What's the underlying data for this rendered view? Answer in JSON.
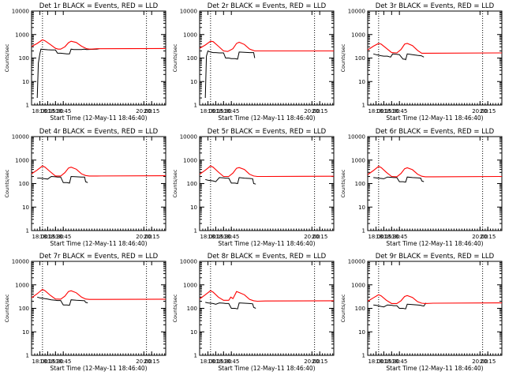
{
  "colors": {
    "events": "#000000",
    "lld": "#ff0000",
    "frame": "#000000",
    "background": "#ffffff"
  },
  "chart_data": [
    {
      "type": "line",
      "title": "Det 1r BLACK = Events, RED = LLD",
      "xlabel": "Start Time (12-May-11 18:46:40)",
      "ylabel": "Counts/sec",
      "ylog": true,
      "ylim": [
        1,
        10000
      ],
      "xlim": [
        17.84,
        20.42
      ],
      "xticks": [
        "18:00",
        "18:15",
        "18:30",
        "18:45",
        "20:00",
        "20:15"
      ],
      "yticks": [
        "1",
        "10",
        "100",
        "1000",
        "10000"
      ],
      "markers": [
        "18:05",
        "20:05"
      ],
      "series": [
        {
          "name": "Events",
          "x": [
            17.95,
            17.97,
            18.0,
            18.02,
            18.1,
            18.15,
            18.22,
            18.3,
            18.34,
            18.4,
            18.45,
            18.52,
            18.57,
            18.6,
            18.65,
            18.8,
            18.85,
            18.9,
            19.1,
            19.14
          ],
          "y": [
            2,
            60,
            150,
            240,
            230,
            225,
            220,
            220,
            160,
            160,
            155,
            150,
            150,
            240,
            230,
            230,
            240,
            230,
            240,
            250
          ]
        },
        {
          "name": "LLD",
          "x": [
            17.84,
            17.95,
            18.05,
            18.1,
            18.2,
            18.3,
            18.35,
            18.4,
            18.48,
            18.55,
            18.6,
            18.7,
            18.8,
            18.9,
            18.95,
            19.0,
            19.1,
            20.42
          ],
          "y": [
            310,
            420,
            600,
            540,
            380,
            260,
            240,
            240,
            300,
            450,
            520,
            460,
            320,
            250,
            240,
            240,
            250,
            255
          ]
        }
      ]
    },
    {
      "type": "line",
      "title": "Det 2r BLACK = Events, RED = LLD",
      "xlabel": "Start Time (12-May-11 18:46:40)",
      "ylabel": "Counts/sec",
      "ylog": true,
      "ylim": [
        1,
        10000
      ],
      "xlim": [
        17.84,
        20.42
      ],
      "xticks": [
        "18:00",
        "18:15",
        "18:30",
        "18:45",
        "20:00",
        "20:15"
      ],
      "yticks": [
        "1",
        "10",
        "100",
        "1000",
        "10000"
      ],
      "markers": [
        "18:05",
        "20:05"
      ],
      "series": [
        {
          "name": "Events",
          "x": [
            17.95,
            17.97,
            18.0,
            18.05,
            18.1,
            18.15,
            18.22,
            18.3,
            18.34,
            18.4,
            18.45,
            18.52,
            18.57,
            18.6,
            18.7,
            18.8,
            18.88,
            18.9
          ],
          "y": [
            2,
            120,
            200,
            180,
            170,
            170,
            165,
            165,
            100,
            100,
            95,
            95,
            90,
            180,
            175,
            170,
            170,
            100
          ]
        },
        {
          "name": "LLD",
          "x": [
            17.84,
            17.95,
            18.05,
            18.1,
            18.2,
            18.3,
            18.38,
            18.48,
            18.55,
            18.6,
            18.7,
            18.8,
            18.9,
            19.1,
            20.42
          ],
          "y": [
            260,
            360,
            520,
            500,
            320,
            200,
            190,
            250,
            420,
            470,
            380,
            240,
            200,
            200,
            200
          ]
        }
      ]
    },
    {
      "type": "line",
      "title": "Det 3r BLACK = Events, RED = LLD",
      "xlabel": "Start Time (12-May-11 18:46:40)",
      "ylabel": "Counts/sec",
      "ylog": true,
      "ylim": [
        1,
        10000
      ],
      "xlim": [
        17.84,
        20.42
      ],
      "xticks": [
        "18:00",
        "18:15",
        "18:30",
        "18:45",
        "20:00",
        "20:15"
      ],
      "yticks": [
        "1",
        "10",
        "100",
        "1000",
        "10000"
      ],
      "markers": [
        "18:05",
        "20:05"
      ],
      "series": [
        {
          "name": "Events",
          "x": [
            17.95,
            18.0,
            18.1,
            18.15,
            18.22,
            18.28,
            18.32,
            18.4,
            18.45,
            18.52,
            18.55,
            18.57,
            18.6,
            18.7,
            18.8,
            18.87,
            18.92
          ],
          "y": [
            150,
            140,
            125,
            120,
            120,
            110,
            150,
            145,
            140,
            90,
            90,
            85,
            150,
            140,
            130,
            125,
            110
          ]
        },
        {
          "name": "LLD",
          "x": [
            17.84,
            17.95,
            18.05,
            18.1,
            18.2,
            18.3,
            18.4,
            18.48,
            18.55,
            18.6,
            18.7,
            18.8,
            18.88,
            18.95,
            20.42
          ],
          "y": [
            220,
            320,
            420,
            390,
            260,
            170,
            165,
            230,
            390,
            420,
            340,
            210,
            160,
            160,
            165
          ]
        }
      ]
    },
    {
      "type": "line",
      "title": "Det 4r BLACK = Events, RED = LLD",
      "xlabel": "Start Time (12-May-11 18:46:40)",
      "ylabel": "Counts/sec",
      "ylog": true,
      "ylim": [
        1,
        10000
      ],
      "xlim": [
        17.84,
        20.42
      ],
      "xticks": [
        "18:00",
        "18:15",
        "18:30",
        "18:45",
        "20:00",
        "20:15"
      ],
      "yticks": [
        "1",
        "10",
        "100",
        "1000",
        "10000"
      ],
      "markers": [
        "18:05",
        "20:05"
      ],
      "series": [
        {
          "name": "Events",
          "x": [
            17.95,
            18.0,
            18.1,
            18.15,
            18.22,
            18.3,
            18.34,
            18.4,
            18.45,
            18.52,
            18.57,
            18.6,
            18.7,
            18.8,
            18.86,
            18.88,
            18.92
          ],
          "y": [
            170,
            170,
            160,
            155,
            200,
            195,
            190,
            190,
            110,
            110,
            105,
            200,
            195,
            190,
            190,
            120,
            110
          ]
        },
        {
          "name": "LLD",
          "x": [
            17.84,
            17.95,
            18.05,
            18.1,
            18.2,
            18.3,
            18.4,
            18.48,
            18.55,
            18.6,
            18.7,
            18.8,
            18.88,
            18.95,
            19.1,
            20.42
          ],
          "y": [
            260,
            380,
            560,
            500,
            320,
            210,
            210,
            290,
            460,
            500,
            410,
            260,
            220,
            210,
            210,
            215
          ]
        }
      ]
    },
    {
      "type": "line",
      "title": "Det 5r BLACK = Events, RED = LLD",
      "xlabel": "Start Time (12-May-11 18:46:40)",
      "ylabel": "Counts/sec",
      "ylog": true,
      "ylim": [
        1,
        10000
      ],
      "xlim": [
        17.84,
        20.42
      ],
      "xticks": [
        "18:00",
        "18:15",
        "18:30",
        "18:45",
        "20:00",
        "20:15"
      ],
      "yticks": [
        "1",
        "10",
        "100",
        "1000",
        "10000"
      ],
      "markers": [
        "18:05",
        "20:05"
      ],
      "series": [
        {
          "name": "Events",
          "x": [
            17.95,
            18.0,
            18.1,
            18.15,
            18.22,
            18.3,
            18.34,
            18.4,
            18.45,
            18.52,
            18.57,
            18.6,
            18.7,
            18.8,
            18.86,
            18.88,
            18.92
          ],
          "y": [
            150,
            140,
            130,
            120,
            180,
            175,
            170,
            170,
            105,
            105,
            100,
            180,
            170,
            165,
            160,
            100,
            95
          ]
        },
        {
          "name": "LLD",
          "x": [
            17.84,
            17.95,
            18.05,
            18.1,
            18.2,
            18.3,
            18.4,
            18.48,
            18.55,
            18.6,
            18.7,
            18.8,
            18.88,
            18.95,
            19.1,
            20.42
          ],
          "y": [
            250,
            370,
            560,
            500,
            310,
            200,
            200,
            280,
            450,
            480,
            400,
            250,
            210,
            200,
            200,
            205
          ]
        }
      ]
    },
    {
      "type": "line",
      "title": "Det 6r BLACK = Events, RED = LLD",
      "xlabel": "Start Time (12-May-11 18:46:40)",
      "ylabel": "Counts/sec",
      "ylog": true,
      "ylim": [
        1,
        10000
      ],
      "xlim": [
        17.84,
        20.42
      ],
      "xticks": [
        "18:00",
        "18:15",
        "18:30",
        "18:45",
        "20:00",
        "20:15"
      ],
      "yticks": [
        "1",
        "10",
        "100",
        "1000",
        "10000"
      ],
      "markers": [
        "18:05",
        "20:05"
      ],
      "series": [
        {
          "name": "Events",
          "x": [
            17.95,
            18.0,
            18.1,
            18.15,
            18.22,
            18.3,
            18.34,
            18.4,
            18.45,
            18.52,
            18.57,
            18.6,
            18.7,
            18.8,
            18.86,
            18.88,
            18.92
          ],
          "y": [
            180,
            175,
            165,
            160,
            190,
            185,
            180,
            180,
            120,
            120,
            115,
            190,
            180,
            175,
            170,
            130,
            120
          ]
        },
        {
          "name": "LLD",
          "x": [
            17.84,
            17.95,
            18.05,
            18.1,
            18.2,
            18.3,
            18.4,
            18.48,
            18.55,
            18.6,
            18.7,
            18.8,
            18.88,
            18.95,
            19.1,
            20.42
          ],
          "y": [
            240,
            360,
            540,
            480,
            300,
            200,
            195,
            270,
            430,
            470,
            390,
            250,
            205,
            195,
            195,
            200
          ]
        }
      ]
    },
    {
      "type": "line",
      "title": "Det 7r BLACK = Events, RED = LLD",
      "xlabel": "Start Time (12-May-11 18:46:40)",
      "ylabel": "Counts/sec",
      "ylog": true,
      "ylim": [
        1,
        10000
      ],
      "xlim": [
        17.84,
        20.42
      ],
      "xticks": [
        "18:00",
        "18:15",
        "18:30",
        "18:45",
        "20:00",
        "20:15"
      ],
      "yticks": [
        "1",
        "10",
        "100",
        "1000",
        "10000"
      ],
      "markers": [
        "18:05",
        "20:05"
      ],
      "series": [
        {
          "name": "Events",
          "x": [
            17.95,
            18.0,
            18.1,
            18.15,
            18.22,
            18.3,
            18.34,
            18.4,
            18.45,
            18.52,
            18.57,
            18.6,
            18.7,
            18.8,
            18.86,
            18.88,
            18.92
          ],
          "y": [
            300,
            280,
            260,
            250,
            230,
            220,
            215,
            215,
            140,
            140,
            135,
            230,
            220,
            215,
            210,
            180,
            170
          ]
        },
        {
          "name": "LLD",
          "x": [
            17.84,
            17.95,
            18.05,
            18.1,
            18.2,
            18.3,
            18.4,
            18.48,
            18.55,
            18.6,
            18.7,
            18.8,
            18.88,
            18.95,
            19.1,
            20.42
          ],
          "y": [
            280,
            420,
            640,
            560,
            360,
            250,
            245,
            330,
            520,
            560,
            460,
            300,
            250,
            240,
            240,
            245
          ]
        }
      ]
    },
    {
      "type": "line",
      "title": "Det 8r BLACK = Events, RED = LLD",
      "xlabel": "Start Time (12-May-11 18:46:40)",
      "ylabel": "Counts/sec",
      "ylog": true,
      "ylim": [
        1,
        10000
      ],
      "xlim": [
        17.84,
        20.42
      ],
      "xticks": [
        "18:00",
        "18:15",
        "18:30",
        "18:45",
        "20:00",
        "20:15"
      ],
      "yticks": [
        "1",
        "10",
        "100",
        "1000",
        "10000"
      ],
      "markers": [
        "18:05",
        "20:05"
      ],
      "series": [
        {
          "name": "Events",
          "x": [
            17.95,
            18.0,
            18.1,
            18.15,
            18.22,
            18.3,
            18.34,
            18.4,
            18.45,
            18.52,
            18.57,
            18.6,
            18.7,
            18.8,
            18.86,
            18.88,
            18.92
          ],
          "y": [
            180,
            170,
            160,
            150,
            170,
            165,
            160,
            160,
            100,
            100,
            95,
            170,
            165,
            160,
            155,
            110,
            100
          ]
        },
        {
          "name": "LLD",
          "x": [
            17.84,
            17.95,
            18.05,
            18.1,
            18.2,
            18.3,
            18.4,
            18.44,
            18.48,
            18.52,
            18.55,
            18.6,
            18.7,
            18.8,
            18.88,
            18.95,
            19.1,
            20.42
          ],
          "y": [
            250,
            380,
            560,
            490,
            300,
            220,
            220,
            300,
            260,
            380,
            520,
            470,
            380,
            240,
            210,
            200,
            205,
            210
          ]
        }
      ]
    },
    {
      "type": "line",
      "title": "Det 9r BLACK = Events, RED = LLD",
      "xlabel": "Start Time (12-May-11 18:46:40)",
      "ylabel": "Counts/sec",
      "ylog": true,
      "ylim": [
        1,
        10000
      ],
      "xlim": [
        17.84,
        20.42
      ],
      "xticks": [
        "18:00",
        "18:15",
        "18:30",
        "18:45",
        "20:00",
        "20:15"
      ],
      "yticks": [
        "1",
        "10",
        "100",
        "1000",
        "10000"
      ],
      "markers": [
        "18:05",
        "20:05"
      ],
      "series": [
        {
          "name": "Events",
          "x": [
            17.95,
            18.0,
            18.1,
            18.15,
            18.22,
            18.3,
            18.34,
            18.4,
            18.45,
            18.52,
            18.57,
            18.6,
            18.7,
            18.8,
            18.86,
            18.88,
            18.92,
            18.96
          ],
          "y": [
            140,
            135,
            120,
            115,
            140,
            135,
            130,
            130,
            100,
            100,
            95,
            150,
            145,
            140,
            135,
            130,
            125,
            170
          ]
        },
        {
          "name": "LLD",
          "x": [
            17.84,
            17.95,
            18.05,
            18.1,
            18.2,
            18.3,
            18.4,
            18.48,
            18.55,
            18.6,
            18.7,
            18.8,
            18.88,
            18.95,
            19.1,
            20.42
          ],
          "y": [
            200,
            280,
            380,
            340,
            220,
            160,
            160,
            210,
            320,
            350,
            290,
            190,
            165,
            160,
            165,
            170
          ]
        }
      ]
    }
  ]
}
